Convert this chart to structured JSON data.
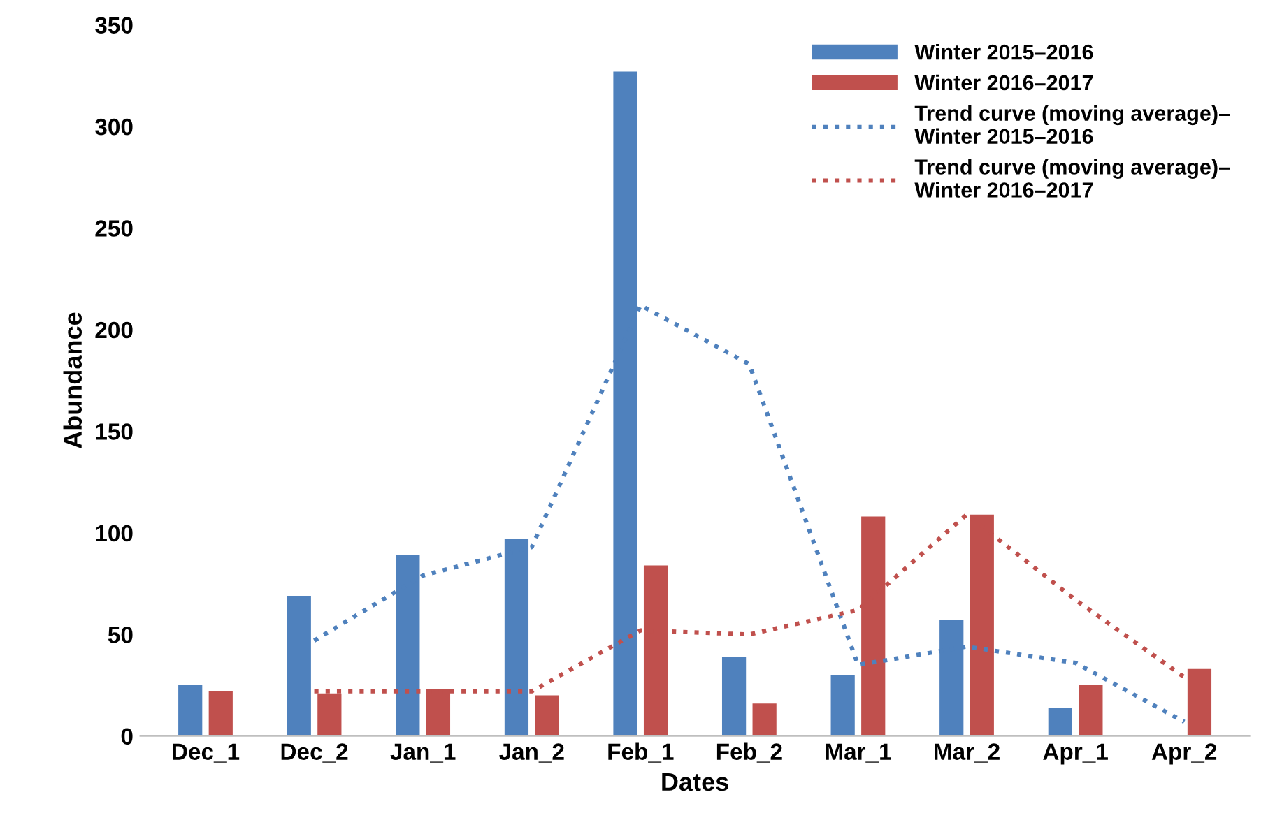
{
  "chart_data": {
    "type": "bar",
    "xlabel": "Dates",
    "ylabel": "Abundance",
    "categories": [
      "Dec_1",
      "Dec_2",
      "Jan_1",
      "Jan_2",
      "Feb_1",
      "Feb_2",
      "Mar_1",
      "Mar_2",
      "Apr_1",
      "Apr_2"
    ],
    "series": [
      {
        "name": "Winter 2015–2016",
        "color": "#4f81bd",
        "values": [
          25,
          69,
          89,
          97,
          327,
          39,
          30,
          57,
          14,
          null
        ]
      },
      {
        "name": "Winter 2016–2017",
        "color": "#c0504d",
        "values": [
          22,
          21,
          23,
          20,
          84,
          16,
          108,
          109,
          25,
          33
        ]
      },
      {
        "name": "Trend curve (moving average)–\nWinter 2015–2016",
        "type": "line",
        "line_style": "dotted",
        "color": "#4f81bd",
        "values": [
          null,
          47,
          79,
          93,
          212,
          183,
          35,
          44,
          36,
          7
        ]
      },
      {
        "name": "Trend curve (moving average)–\nWinter 2016–2017",
        "type": "line",
        "line_style": "dotted",
        "color": "#c0504d",
        "values": [
          null,
          22,
          22,
          22,
          52,
          50,
          62,
          109,
          67,
          29
        ]
      }
    ],
    "ylim": [
      0,
      350
    ],
    "yticks": [
      0,
      50,
      100,
      150,
      200,
      250,
      300,
      350
    ],
    "grid": false,
    "legend": "top right"
  }
}
